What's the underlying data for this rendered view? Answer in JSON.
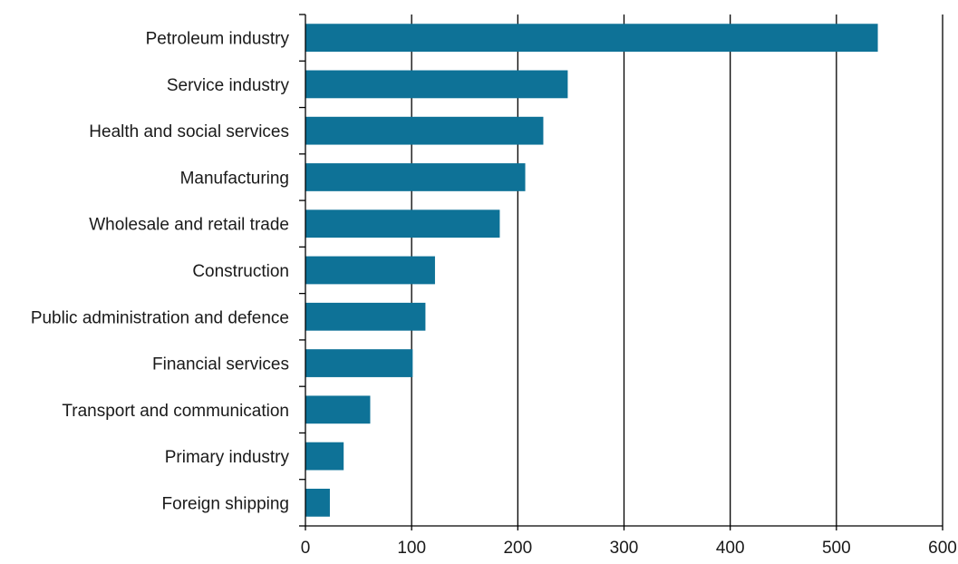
{
  "chart_data": {
    "type": "bar",
    "orientation": "horizontal",
    "categories": [
      "Petroleum industry",
      "Service industry",
      "Health and social services",
      "Manufacturing",
      "Wholesale and retail trade",
      "Construction",
      "Public administration and defence",
      "Financial services",
      "Transport and communication",
      "Primary industry",
      "Foreign shipping"
    ],
    "values": [
      539,
      247,
      224,
      207,
      183,
      122,
      113,
      101,
      61,
      36,
      23
    ],
    "xlim": [
      0,
      600
    ],
    "xticks": [
      "0",
      "100",
      "200",
      "300",
      "400",
      "500",
      "600"
    ],
    "grid": "vertical",
    "bar_color": "#0e7297",
    "title": "",
    "xlabel": "",
    "ylabel": ""
  }
}
